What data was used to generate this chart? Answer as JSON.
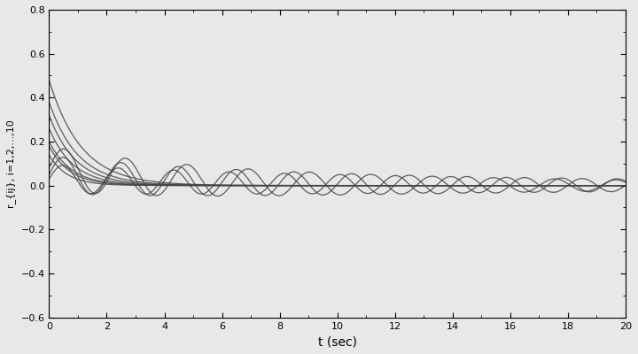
{
  "title": "",
  "xlabel": "t (sec)",
  "ylabel": "r_{ij}, i=1,2,...,10",
  "xlim": [
    0,
    20
  ],
  "ylim": [
    -0.6,
    0.8
  ],
  "yticks": [
    -0.6,
    -0.4,
    -0.2,
    0,
    0.2,
    0.4,
    0.6,
    0.8
  ],
  "xticks": [
    0,
    2,
    4,
    6,
    8,
    10,
    12,
    14,
    16,
    18,
    20
  ],
  "background_color": "#e8e8e8",
  "line_color": "#444444",
  "figsize": [
    7.2,
    4.0
  ],
  "dpi": 100,
  "curves": [
    {
      "y0": 0.48,
      "decay": 0.9,
      "osc_amp": 0.0,
      "osc_freq": 0.5,
      "osc_decay": 0.1
    },
    {
      "y0": 0.38,
      "decay": 1.0,
      "osc_amp": 0.0,
      "osc_freq": 0.5,
      "osc_decay": 0.1
    },
    {
      "y0": 0.32,
      "decay": 1.1,
      "osc_amp": 0.0,
      "osc_freq": 0.5,
      "osc_decay": 0.1
    },
    {
      "y0": 0.26,
      "decay": 1.2,
      "osc_amp": 0.0,
      "osc_freq": 0.5,
      "osc_decay": 0.1
    },
    {
      "y0": 0.2,
      "decay": 1.3,
      "osc_amp": 0.0,
      "osc_freq": 0.5,
      "osc_decay": 0.1
    },
    {
      "y0": 0.18,
      "decay": 1.4,
      "osc_amp": 0.0,
      "osc_freq": 0.5,
      "osc_decay": 0.1
    },
    {
      "y0": 0.14,
      "decay": 1.6,
      "osc_amp": 0.0,
      "osc_freq": 0.5,
      "osc_decay": 0.1
    },
    {
      "y0": 0.08,
      "decay": 0.25,
      "osc_amp": 0.1,
      "osc_freq": 0.47,
      "osc_decay": 0.07
    },
    {
      "y0": 0.05,
      "decay": 0.2,
      "osc_amp": 0.085,
      "osc_freq": 0.5,
      "osc_decay": 0.055
    },
    {
      "y0": 0.03,
      "decay": 0.15,
      "osc_amp": 0.065,
      "osc_freq": 0.52,
      "osc_decay": 0.04
    }
  ]
}
